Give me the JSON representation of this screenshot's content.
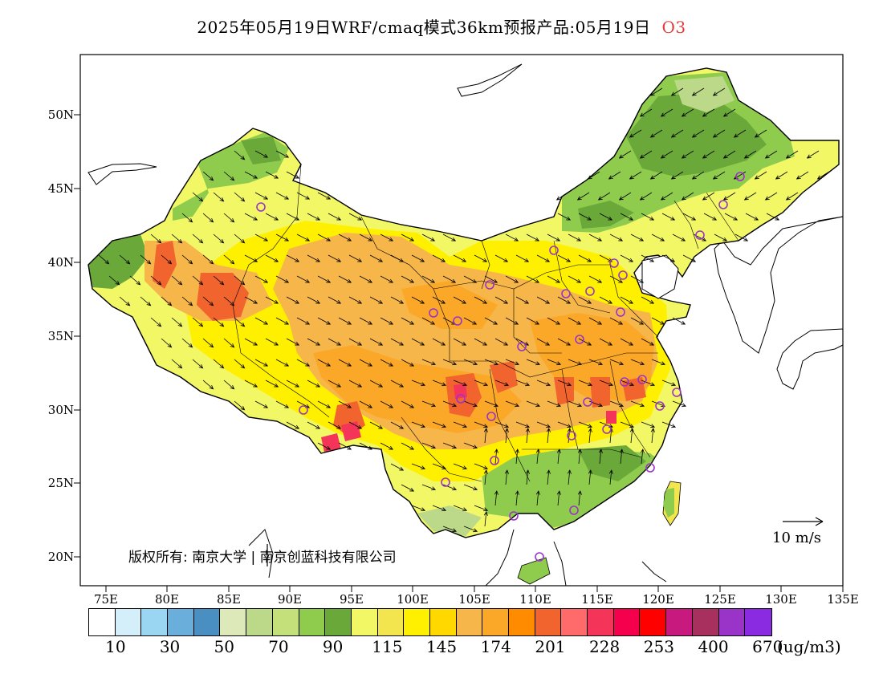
{
  "title": {
    "main": "2025年05月19日WRF/cmaq模式36km预报产品:05月19日",
    "species": "O3"
  },
  "axes": {
    "lat_labels": [
      "50N",
      "45N",
      "40N",
      "35N",
      "30N",
      "25N",
      "20N"
    ],
    "lon_labels": [
      "75E",
      "80E",
      "85E",
      "90E",
      "95E",
      "100E",
      "105E",
      "110E",
      "115E",
      "120E",
      "125E",
      "130E",
      "135E"
    ]
  },
  "legend": {
    "colors": [
      "#ffffff",
      "#d4eefa",
      "#9ad6f2",
      "#6aaedc",
      "#4a8fc2",
      "#dde9b8",
      "#bcd98a",
      "#c3e07a",
      "#8fcc4e",
      "#6aa83a",
      "#f2f766",
      "#f2e54e",
      "#fff000",
      "#ffd800",
      "#f7b64a",
      "#fba828",
      "#ff8c00",
      "#f2642e",
      "#ff6a6a",
      "#f5345a",
      "#f5004c",
      "#ff0000",
      "#c81a7e",
      "#a8305e",
      "#9a34c8",
      "#8a2be2"
    ],
    "tick_labels": [
      "10",
      "30",
      "50",
      "70",
      "90",
      "115",
      "145",
      "174",
      "201",
      "228",
      "253",
      "400",
      "670"
    ],
    "unit": "(ug/m3)"
  },
  "wind_reference": "10 m/s",
  "copyright": "版权所有: 南京大学 | 南京创蓝科技有限公司",
  "field_colors": {
    "green_dark": "#6aa83a",
    "green": "#8fcc4e",
    "green_light": "#bcd98a",
    "yellow_light": "#f2f766",
    "yellow": "#fff000",
    "gold": "#ffd800",
    "orange_light": "#f7b64a",
    "orange": "#fba828",
    "orange_dark": "#f2642e",
    "red": "#f5345a",
    "site_circle": "#9a34c8"
  },
  "sites": [
    "urumqi",
    "lhasa",
    "xining",
    "lanzhou",
    "yinchuan",
    "hohhot",
    "beijing",
    "tianjin",
    "shijiazhuang",
    "taiyuan",
    "jinan",
    "zhengzhou",
    "xian",
    "chengdu",
    "chongqing",
    "wuhan",
    "changsha",
    "nanchang",
    "hefei",
    "nanjing",
    "hangzhou",
    "shanghai",
    "fuzhou",
    "guangzhou",
    "nanning",
    "guiyang",
    "kunming",
    "haikou",
    "harbin",
    "changchun",
    "shenyang"
  ]
}
